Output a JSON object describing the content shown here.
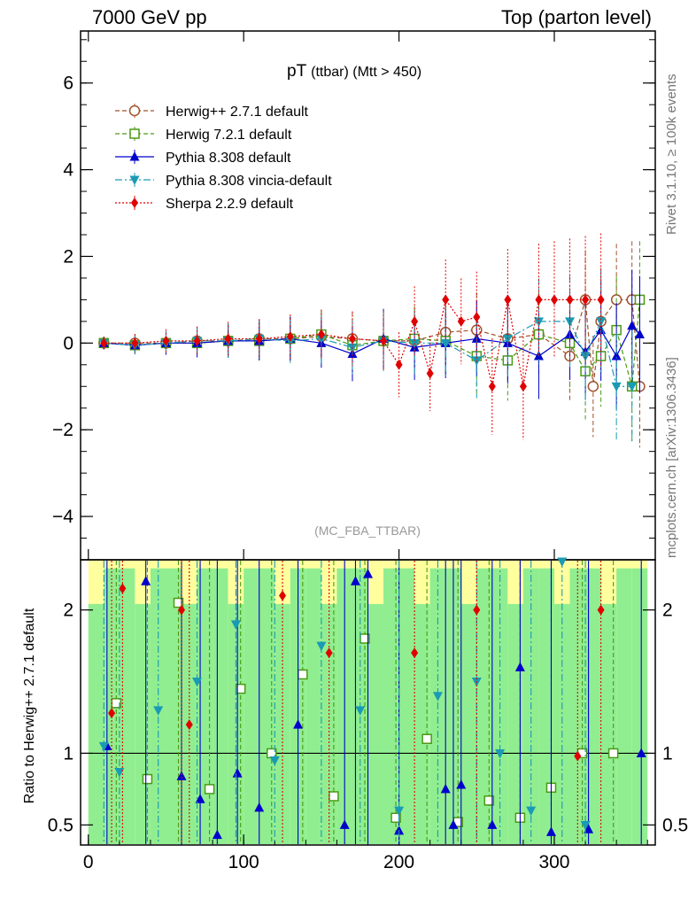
{
  "header": {
    "left": "7000 GeV pp",
    "right": "Top (parton level)"
  },
  "side_labels": {
    "rivet": "Rivet 3.1.10, ≥ 100k events",
    "mcplots": "mcplots.cern.ch [arXiv:1306.3436]"
  },
  "plot_title": {
    "main": "pT",
    "sub": "(ttbar) (Mtt > 450)"
  },
  "analysis_id": "(MC_FBA_TTBAR)",
  "ratio_ylabel": "Ratio to Herwig++ 2.7.1 default",
  "colors": {
    "herwigpp": "#a0522d",
    "herwig7": "#4a9a14",
    "pythia": "#0000cc",
    "vincia": "#1a9ab4",
    "sherpa": "#e00000",
    "band_green": "#90ee90",
    "band_yellow": "#ffff9e"
  },
  "chart_data": [
    {
      "type": "scatter",
      "panel": "main",
      "ylim": [
        -5,
        7.2
      ],
      "xlim": [
        -5,
        365
      ],
      "yticks": [
        -4,
        -2,
        0,
        2,
        4,
        6
      ],
      "ytick_labels": [
        "−4",
        "−2",
        "0",
        "2",
        "4",
        "6"
      ],
      "series": [
        {
          "name": "Herwig++ 2.7.1 default",
          "style": "dashed",
          "marker": "circle-open",
          "x": [
            10,
            30,
            50,
            70,
            90,
            110,
            130,
            150,
            170,
            190,
            210,
            230,
            250,
            270,
            290,
            310,
            320,
            325,
            330,
            340,
            350,
            355
          ],
          "y": [
            0,
            0,
            0,
            0.05,
            0.05,
            0.1,
            0.1,
            0.15,
            0.1,
            0.05,
            0.05,
            0.25,
            0.3,
            0.1,
            0.2,
            -0.3,
            1.0,
            -1.0,
            0.5,
            1.0,
            1.0,
            -1.0
          ]
        },
        {
          "name": "Herwig 7.2.1 default",
          "style": "dashed",
          "marker": "square-open",
          "x": [
            10,
            30,
            50,
            70,
            90,
            110,
            130,
            150,
            170,
            190,
            210,
            230,
            250,
            270,
            290,
            310,
            320,
            330,
            340,
            350,
            355
          ],
          "y": [
            0,
            -0.05,
            0,
            0,
            0.05,
            0.05,
            0.1,
            0.2,
            -0.05,
            0.05,
            0.1,
            0.05,
            -0.3,
            -0.4,
            0.2,
            0,
            -0.65,
            -0.3,
            0.3,
            -1.0,
            1.0
          ]
        },
        {
          "name": "Pythia 8.308 default",
          "style": "solid",
          "marker": "triangle-up",
          "x": [
            10,
            30,
            50,
            70,
            90,
            110,
            130,
            150,
            170,
            190,
            210,
            230,
            250,
            270,
            290,
            310,
            320,
            330,
            340,
            350,
            355
          ],
          "y": [
            0,
            -0.05,
            0,
            0,
            0.05,
            0.05,
            0.1,
            0.0,
            -0.25,
            0.1,
            -0.1,
            0.0,
            0.1,
            0.0,
            -0.3,
            0.2,
            -0.2,
            0.3,
            -0.3,
            0.4,
            0.2
          ]
        },
        {
          "name": "Pythia 8.308 vincia-default",
          "style": "dashdot",
          "marker": "triangle-down",
          "x": [
            10,
            30,
            50,
            70,
            90,
            110,
            130,
            150,
            170,
            190,
            210,
            230,
            250,
            270,
            290,
            310,
            320,
            330,
            340,
            350
          ],
          "y": [
            0,
            -0.05,
            0,
            0.05,
            0.05,
            0.1,
            0.05,
            0.1,
            -0.1,
            0.05,
            0.0,
            0.0,
            -0.4,
            0.1,
            0.5,
            0.5,
            -0.3,
            0.5,
            -1.0,
            -1.0
          ]
        },
        {
          "name": "Sherpa 2.2.9 default",
          "style": "dotted",
          "marker": "diamond",
          "x": [
            10,
            30,
            50,
            70,
            90,
            110,
            130,
            150,
            170,
            190,
            200,
            210,
            220,
            230,
            240,
            250,
            260,
            270,
            280,
            290,
            300,
            310,
            320,
            330
          ],
          "y": [
            0,
            0,
            0.05,
            0.05,
            0.1,
            0.1,
            0.15,
            0.2,
            0.1,
            0.05,
            -0.5,
            0.5,
            -0.7,
            1.0,
            0.5,
            0.6,
            -1.0,
            1.0,
            -1.0,
            1.0,
            1.0,
            1.0,
            1.0,
            1.0
          ]
        }
      ]
    },
    {
      "type": "scatter",
      "panel": "ratio",
      "ylim": [
        0.36,
        2.35
      ],
      "xlim": [
        -5,
        365
      ],
      "yticks": [
        0.5,
        1,
        2
      ],
      "ytick_labels": [
        "0.5",
        "1",
        "2"
      ],
      "xticks": [
        0,
        100,
        200,
        300
      ],
      "xtick_labels": [
        "0",
        "100",
        "200",
        "300"
      ],
      "reference_line": 1,
      "series": [
        {
          "name": "Herwig 7.2.1 default",
          "x": [
            18,
            38,
            58,
            78,
            98,
            118,
            138,
            158,
            178,
            198,
            218,
            238,
            258,
            278,
            298,
            318,
            338
          ],
          "y": [
            1.35,
            0.82,
            2.05,
            0.75,
            1.45,
            1.0,
            1.55,
            0.7,
            1.8,
            0.55,
            1.1,
            0.52,
            0.67,
            0.55,
            0.76,
            1.0,
            1.0
          ]
        },
        {
          "name": "Pythia 8.308 default",
          "x": [
            12,
            37,
            60,
            72,
            83,
            96,
            110,
            135,
            165,
            172,
            180,
            200,
            230,
            235,
            240,
            260,
            278,
            298,
            322,
            356
          ],
          "y": [
            1.05,
            2.2,
            0.84,
            0.68,
            0.43,
            0.86,
            0.62,
            1.2,
            0.5,
            2.2,
            2.25,
            0.46,
            0.75,
            0.5,
            0.78,
            0.5,
            1.6,
            0.45,
            0.47,
            1.0
          ]
        },
        {
          "name": "Pythia 8.308 vincia-default",
          "x": [
            10,
            20,
            45,
            70,
            95,
            120,
            150,
            175,
            200,
            225,
            250,
            265,
            285,
            305,
            320
          ],
          "y": [
            1.05,
            0.87,
            1.3,
            1.5,
            1.9,
            0.95,
            1.75,
            1.3,
            0.6,
            1.4,
            1.5,
            1.0,
            0.6,
            2.35,
            0.5
          ]
        },
        {
          "name": "Sherpa 2.2.9 default",
          "x": [
            15,
            22,
            60,
            65,
            125,
            155,
            210,
            250,
            315,
            330
          ],
          "y": [
            1.28,
            2.15,
            2.0,
            1.2,
            2.1,
            1.7,
            1.7,
            2.0,
            0.98,
            2.0
          ]
        }
      ]
    }
  ]
}
